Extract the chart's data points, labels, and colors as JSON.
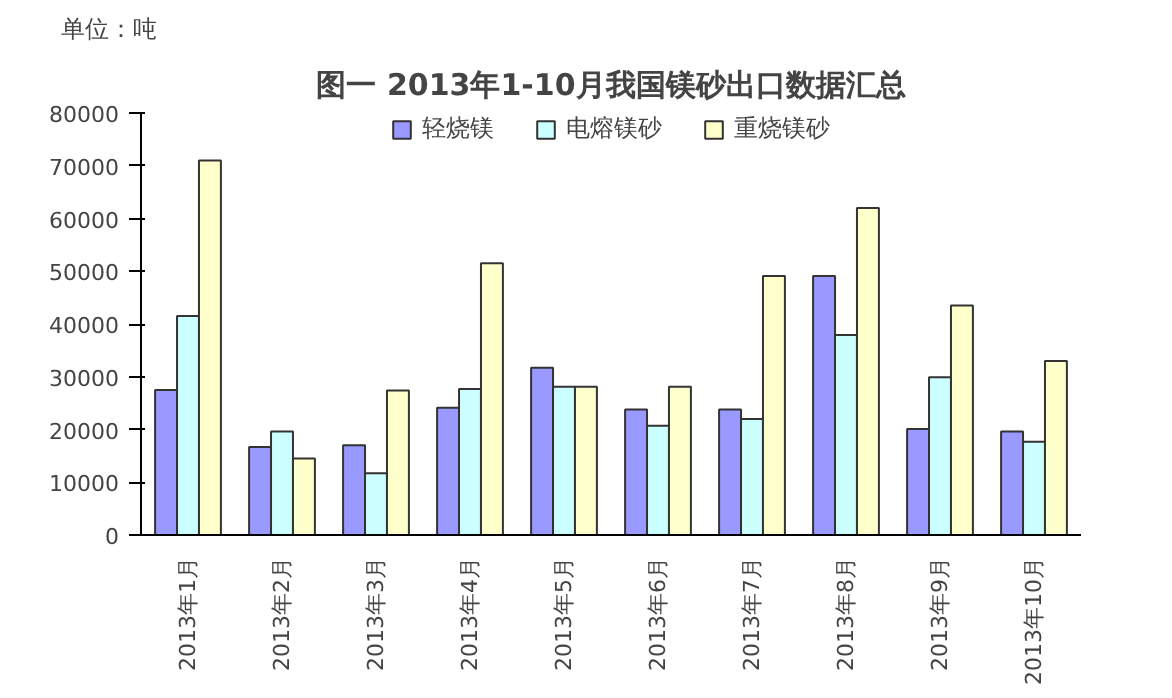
{
  "chart_data": {
    "type": "bar",
    "title": "图一 2013年1-10月我国镁砂出口数据汇总",
    "ylabel": "单位：吨",
    "categories": [
      "2013年1月",
      "2013年2月",
      "2013年3月",
      "2013年4月",
      "2013年5月",
      "2013年6月",
      "2013年7月",
      "2013年8月",
      "2013年9月",
      "2013年10月"
    ],
    "series": [
      {
        "name": "轻烧镁",
        "color": "#9999ff",
        "values": [
          27500,
          16700,
          17000,
          24100,
          31700,
          23800,
          23800,
          49100,
          20100,
          19600
        ]
      },
      {
        "name": "电熔镁砂",
        "color": "#ccffff",
        "values": [
          41500,
          19600,
          11700,
          27700,
          28100,
          20700,
          22000,
          37900,
          29900,
          17700
        ]
      },
      {
        "name": "重烧镁砂",
        "color": "#ffffcc",
        "values": [
          71000,
          14500,
          27400,
          51500,
          28100,
          28100,
          49100,
          62000,
          43500,
          33000
        ]
      }
    ],
    "ylim": [
      0,
      80000
    ],
    "yticks": [
      0,
      10000,
      20000,
      30000,
      40000,
      50000,
      60000,
      70000,
      80000
    ],
    "grid": false,
    "legend": "top"
  }
}
